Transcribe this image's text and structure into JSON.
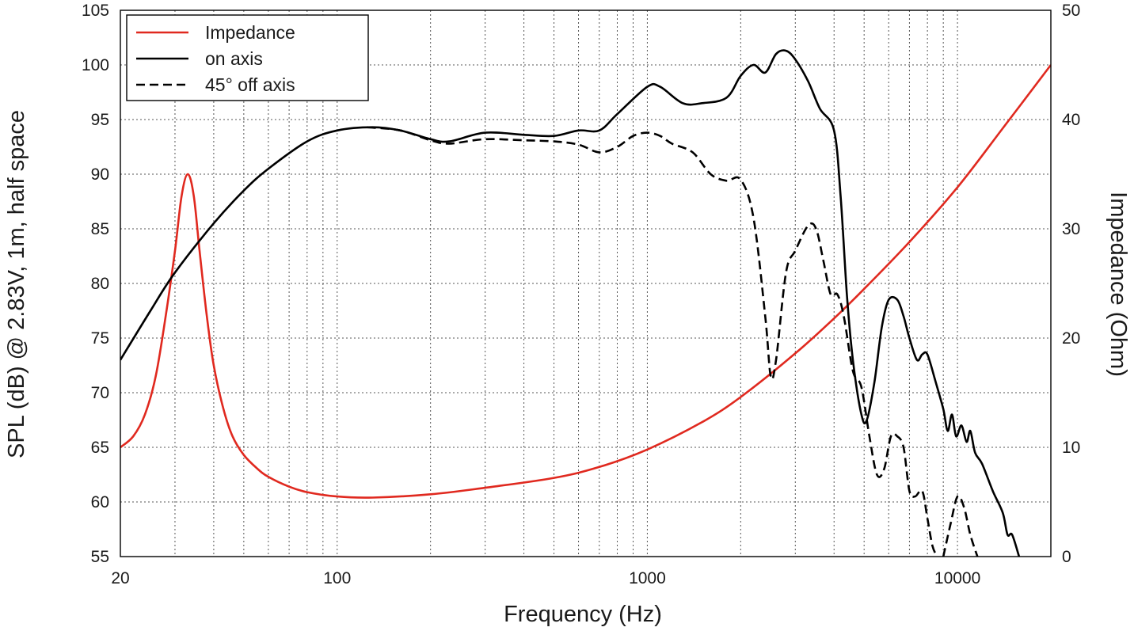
{
  "chart_data": {
    "type": "line",
    "title": "",
    "xlabel": "Frequency (Hz)",
    "ylabel": "SPL (dB) @ 2.83V, 1m, half space",
    "ylabel_right": "Impedance (Ohm)",
    "x_scale": "log",
    "xlim": [
      20,
      20000
    ],
    "ylim": [
      55,
      105
    ],
    "ylim_right": [
      0,
      50
    ],
    "grid": true,
    "legend_position": "top-left",
    "x_ticks": [
      {
        "value": 20,
        "label": "20"
      },
      {
        "value": 100,
        "label": "100"
      },
      {
        "value": 1000,
        "label": "1000"
      },
      {
        "value": 10000,
        "label": "10000"
      }
    ],
    "y_ticks": [
      {
        "value": 55,
        "label": "55"
      },
      {
        "value": 60,
        "label": "60"
      },
      {
        "value": 65,
        "label": "65"
      },
      {
        "value": 70,
        "label": "70"
      },
      {
        "value": 75,
        "label": "75"
      },
      {
        "value": 80,
        "label": "80"
      },
      {
        "value": 85,
        "label": "85"
      },
      {
        "value": 90,
        "label": "90"
      },
      {
        "value": 95,
        "label": "95"
      },
      {
        "value": 100,
        "label": "100"
      },
      {
        "value": 105,
        "label": "105"
      }
    ],
    "y_ticks_right": [
      {
        "value": 0,
        "label": "0"
      },
      {
        "value": 10,
        "label": "10"
      },
      {
        "value": 20,
        "label": "20"
      },
      {
        "value": 30,
        "label": "30"
      },
      {
        "value": 40,
        "label": "40"
      },
      {
        "value": 50,
        "label": "50"
      }
    ],
    "series": [
      {
        "name": "Impedance",
        "axis": "right",
        "color": "#e0291f",
        "style": "solid",
        "points": [
          [
            20,
            10
          ],
          [
            22,
            11
          ],
          [
            24,
            13
          ],
          [
            26,
            16.5
          ],
          [
            28,
            22
          ],
          [
            30,
            28
          ],
          [
            31.5,
            33
          ],
          [
            33,
            35
          ],
          [
            34.5,
            33
          ],
          [
            36,
            28
          ],
          [
            38,
            22
          ],
          [
            40,
            17.5
          ],
          [
            43,
            13.5
          ],
          [
            46,
            11
          ],
          [
            50,
            9.3
          ],
          [
            55,
            8.1
          ],
          [
            60,
            7.3
          ],
          [
            70,
            6.4
          ],
          [
            80,
            5.9
          ],
          [
            100,
            5.5
          ],
          [
            130,
            5.4
          ],
          [
            200,
            5.7
          ],
          [
            300,
            6.3
          ],
          [
            500,
            7.2
          ],
          [
            700,
            8.2
          ],
          [
            1000,
            9.8
          ],
          [
            1500,
            12.3
          ],
          [
            2000,
            14.6
          ],
          [
            3000,
            18.6
          ],
          [
            4000,
            21.8
          ],
          [
            5000,
            24.5
          ],
          [
            7000,
            28.8
          ],
          [
            10000,
            33.8
          ],
          [
            14000,
            39.2
          ],
          [
            20000,
            45
          ]
        ]
      },
      {
        "name": "on axis",
        "axis": "left",
        "color": "#000000",
        "style": "solid",
        "points": [
          [
            20,
            73
          ],
          [
            25,
            77.5
          ],
          [
            30,
            81
          ],
          [
            40,
            85.5
          ],
          [
            50,
            88.5
          ],
          [
            60,
            90.5
          ],
          [
            80,
            93
          ],
          [
            100,
            94
          ],
          [
            130,
            94.3
          ],
          [
            160,
            94
          ],
          [
            200,
            93.2
          ],
          [
            230,
            93
          ],
          [
            300,
            93.8
          ],
          [
            400,
            93.6
          ],
          [
            500,
            93.5
          ],
          [
            600,
            94
          ],
          [
            700,
            94
          ],
          [
            800,
            95.5
          ],
          [
            1000,
            98
          ],
          [
            1100,
            98
          ],
          [
            1300,
            96.5
          ],
          [
            1500,
            96.5
          ],
          [
            1800,
            97
          ],
          [
            2000,
            99
          ],
          [
            2200,
            100
          ],
          [
            2400,
            99.3
          ],
          [
            2600,
            101
          ],
          [
            2800,
            101.3
          ],
          [
            3000,
            100.5
          ],
          [
            3300,
            98.5
          ],
          [
            3600,
            96
          ],
          [
            4000,
            94
          ],
          [
            4200,
            88
          ],
          [
            4400,
            79
          ],
          [
            4600,
            73
          ],
          [
            4900,
            68
          ],
          [
            5100,
            67.5
          ],
          [
            5400,
            71
          ],
          [
            5700,
            76
          ],
          [
            6000,
            78.5
          ],
          [
            6400,
            78.5
          ],
          [
            6700,
            77
          ],
          [
            7000,
            75
          ],
          [
            7400,
            73
          ],
          [
            7700,
            73.5
          ],
          [
            8000,
            73.5
          ],
          [
            8500,
            71
          ],
          [
            9000,
            68.5
          ],
          [
            9300,
            66.5
          ],
          [
            9600,
            68
          ],
          [
            9900,
            66
          ],
          [
            10300,
            67
          ],
          [
            10700,
            65.5
          ],
          [
            11000,
            66.5
          ],
          [
            11400,
            64.5
          ],
          [
            12000,
            63.5
          ],
          [
            13000,
            61
          ],
          [
            14000,
            59
          ],
          [
            14500,
            57
          ],
          [
            15000,
            57
          ],
          [
            15800,
            55
          ]
        ]
      },
      {
        "name": "45° off axis",
        "axis": "left",
        "color": "#000000",
        "style": "dashed",
        "points": [
          [
            125,
            94.3
          ],
          [
            160,
            94
          ],
          [
            200,
            93.1
          ],
          [
            230,
            92.8
          ],
          [
            300,
            93.2
          ],
          [
            400,
            93.1
          ],
          [
            500,
            93
          ],
          [
            600,
            92.7
          ],
          [
            700,
            92
          ],
          [
            800,
            92.5
          ],
          [
            900,
            93.5
          ],
          [
            1000,
            93.8
          ],
          [
            1100,
            93.5
          ],
          [
            1200,
            92.8
          ],
          [
            1400,
            92
          ],
          [
            1600,
            90
          ],
          [
            1800,
            89.4
          ],
          [
            2000,
            89.5
          ],
          [
            2200,
            86
          ],
          [
            2400,
            77
          ],
          [
            2500,
            71.5
          ],
          [
            2600,
            73
          ],
          [
            2800,
            81
          ],
          [
            3000,
            83
          ],
          [
            3300,
            85.3
          ],
          [
            3500,
            85
          ],
          [
            3700,
            82
          ],
          [
            3900,
            79
          ],
          [
            4100,
            79
          ],
          [
            4300,
            77
          ],
          [
            4600,
            72
          ],
          [
            4900,
            70.5
          ],
          [
            5200,
            66
          ],
          [
            5500,
            62.5
          ],
          [
            5800,
            63
          ],
          [
            6100,
            66
          ],
          [
            6400,
            66
          ],
          [
            6700,
            65
          ],
          [
            7000,
            61
          ],
          [
            7300,
            60.5
          ],
          [
            7700,
            61
          ],
          [
            8000,
            58.5
          ],
          [
            8300,
            56
          ],
          [
            8600,
            55
          ]
        ],
        "points_tail": [
          [
            9000,
            55
          ],
          [
            9500,
            58
          ],
          [
            10000,
            60.5
          ],
          [
            10500,
            59.5
          ],
          [
            11000,
            57
          ],
          [
            11600,
            55
          ]
        ]
      }
    ],
    "legend": [
      {
        "label": "Impedance",
        "color": "#e0291f",
        "style": "solid"
      },
      {
        "label": "on axis",
        "color": "#000000",
        "style": "solid"
      },
      {
        "label": "45° off axis",
        "color": "#000000",
        "style": "dashed"
      }
    ]
  }
}
